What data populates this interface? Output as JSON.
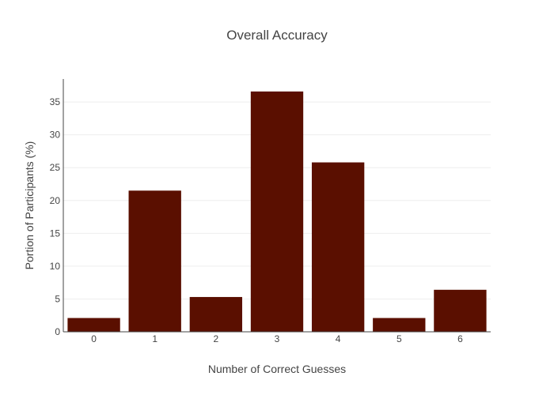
{
  "chart_data": {
    "type": "bar",
    "title": "Overall Accuracy",
    "xlabel": "Number of Correct Guesses",
    "ylabel": "Portion of Participants (%)",
    "categories": [
      "0",
      "1",
      "2",
      "3",
      "4",
      "5",
      "6"
    ],
    "values": [
      2.1,
      21.5,
      5.3,
      36.6,
      25.8,
      2.1,
      6.4
    ],
    "ylim": [
      0,
      38.5
    ],
    "yticks": [
      0,
      5,
      10,
      15,
      20,
      25,
      30,
      35
    ],
    "grid": true,
    "legend": "none",
    "bar_color": "#5a0f00"
  }
}
